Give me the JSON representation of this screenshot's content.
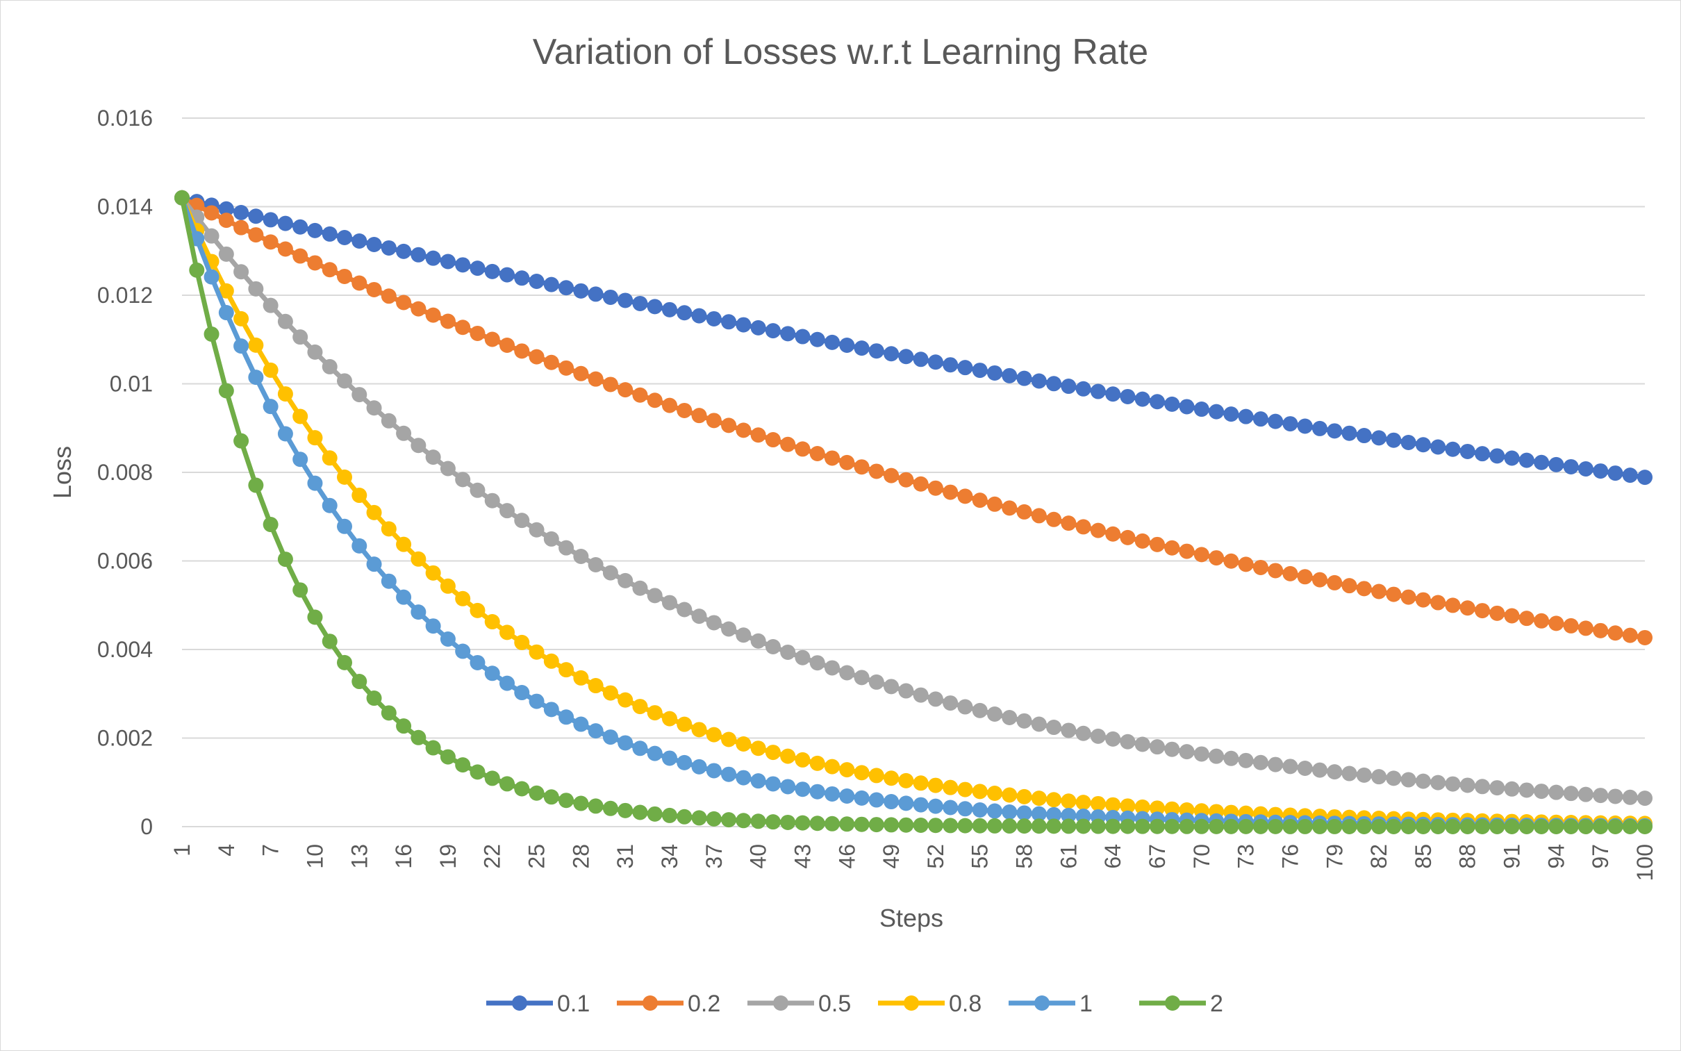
{
  "chart_data": {
    "type": "line",
    "title": "Variation of Losses w.r.t Learning Rate",
    "xlabel": "Steps",
    "ylabel": "Loss",
    "x_range": [
      1,
      100
    ],
    "x_tick_labels": [
      "1",
      "4",
      "7",
      "10",
      "13",
      "16",
      "19",
      "22",
      "25",
      "28",
      "31",
      "34",
      "37",
      "40",
      "43",
      "46",
      "49",
      "52",
      "55",
      "58",
      "61",
      "64",
      "67",
      "70",
      "73",
      "76",
      "79",
      "82",
      "85",
      "88",
      "91",
      "94",
      "97",
      "100"
    ],
    "ylim": [
      0,
      0.016
    ],
    "y_tick_labels": [
      "0",
      "0.002",
      "0.004",
      "0.006",
      "0.008",
      "0.01",
      "0.012",
      "0.014",
      "0.016"
    ],
    "grid": "horizontal",
    "legend_position": "bottom",
    "initial_loss": 0.0142,
    "series": [
      {
        "name": "0.1",
        "color": "#4472c4",
        "start": 0.0142,
        "decay_per_step": 0.99408,
        "end_value_at_100": 0.0079
      },
      {
        "name": "0.2",
        "color": "#ed7d31",
        "start": 0.0142,
        "decay_per_step": 0.98793,
        "end_value_at_100": 0.0043
      },
      {
        "name": "0.5",
        "color": "#a5a5a5",
        "start": 0.0142,
        "decay_per_step": 0.9692,
        "end_value_at_100": 0.00065
      },
      {
        "name": "0.8",
        "color": "#ffc000",
        "start": 0.0142,
        "decay_per_step": 0.948,
        "end_value_at_100": 7e-05
      },
      {
        "name": "1",
        "color": "#5b9bd5",
        "start": 0.0142,
        "decay_per_step": 0.935,
        "end_value_at_100": 2e-05
      },
      {
        "name": "2",
        "color": "#70ad47",
        "start": 0.0142,
        "decay_per_step": 0.885,
        "end_value_at_100": 0.0
      }
    ]
  }
}
